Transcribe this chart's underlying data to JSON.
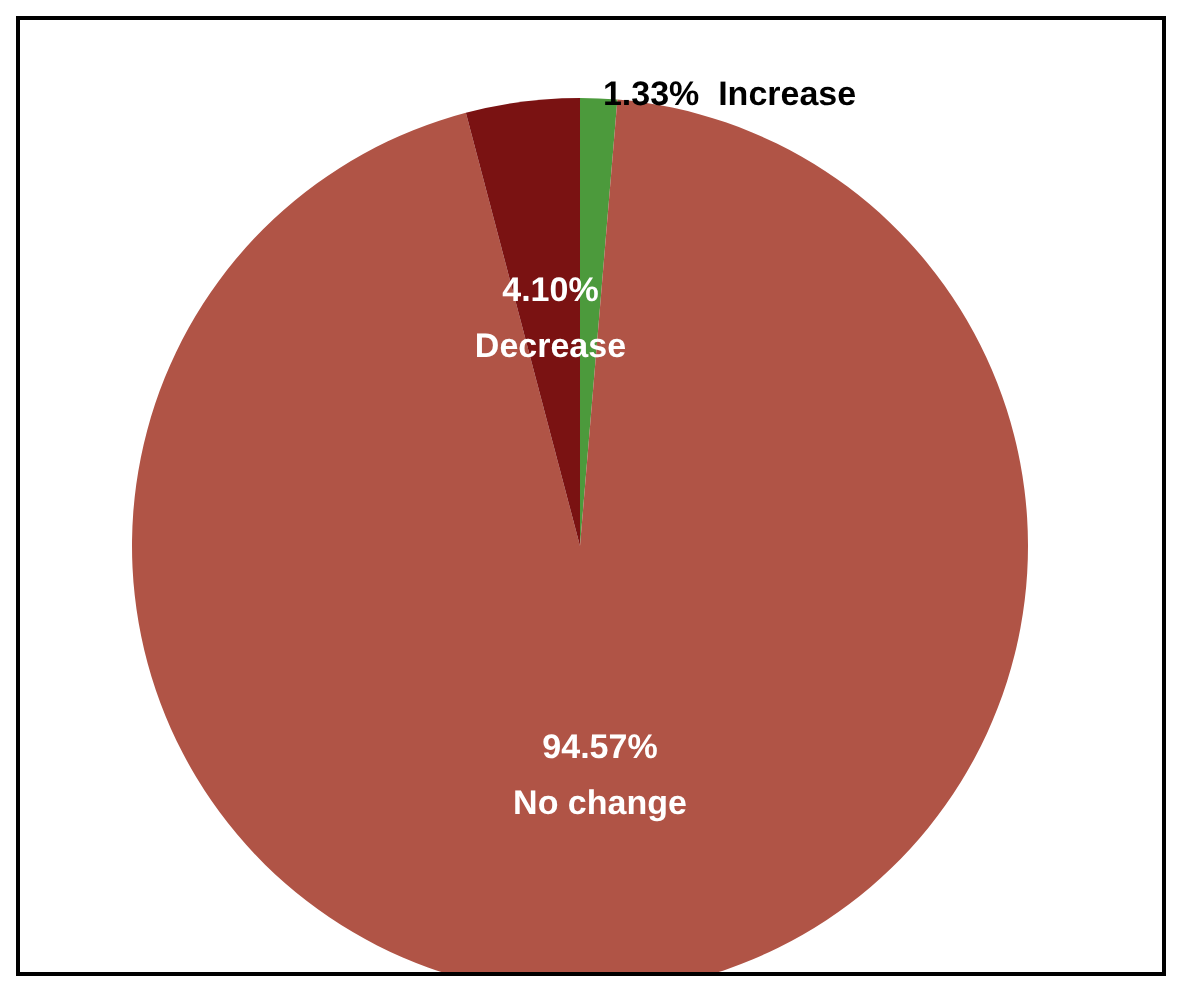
{
  "chart_data": {
    "type": "pie",
    "categories": [
      "Increase",
      "No change",
      "Decrease"
    ],
    "values": [
      1.33,
      94.57,
      4.1
    ],
    "value_labels": [
      "1.33%",
      "94.57%",
      "4.10%"
    ],
    "colors": [
      "#4c9a3c",
      "#b05446",
      "#7a1212"
    ]
  }
}
